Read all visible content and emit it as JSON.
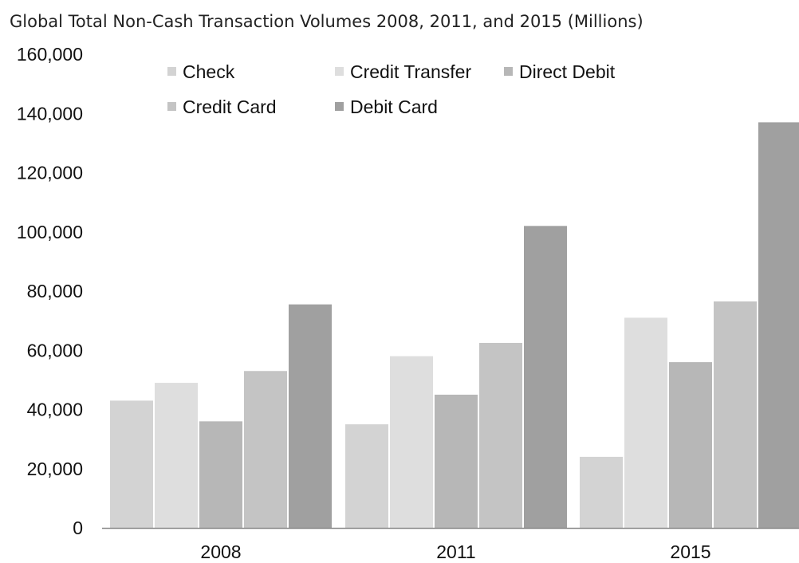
{
  "chart_data": {
    "type": "bar",
    "title": "Global Total Non-Cash Transaction Volumes 2008, 2011, and 2015 (Millions)",
    "xlabel": "",
    "ylabel": "",
    "categories": [
      "2008",
      "2011",
      "2015"
    ],
    "ylim": [
      0,
      160000
    ],
    "yticks": [
      0,
      20000,
      40000,
      60000,
      80000,
      100000,
      120000,
      140000,
      160000
    ],
    "ytick_labels": [
      "0",
      "20,000",
      "40,000",
      "60,000",
      "80,000",
      "100,000",
      "120,000",
      "140,000",
      "160,000"
    ],
    "grid": false,
    "legend_position": "top-left",
    "series": [
      {
        "name": "Check",
        "color": "#d3d3d3",
        "values": [
          43000,
          35000,
          24000
        ]
      },
      {
        "name": "Credit Transfer",
        "color": "#dedede",
        "values": [
          49000,
          58000,
          71000
        ]
      },
      {
        "name": "Direct Debit",
        "color": "#b7b7b7",
        "values": [
          36000,
          45000,
          56000
        ]
      },
      {
        "name": "Credit Card",
        "color": "#c4c4c4",
        "values": [
          53000,
          62500,
          76500
        ]
      },
      {
        "name": "Debit Card",
        "color": "#a0a0a0",
        "values": [
          75500,
          102000,
          137000
        ]
      }
    ]
  }
}
